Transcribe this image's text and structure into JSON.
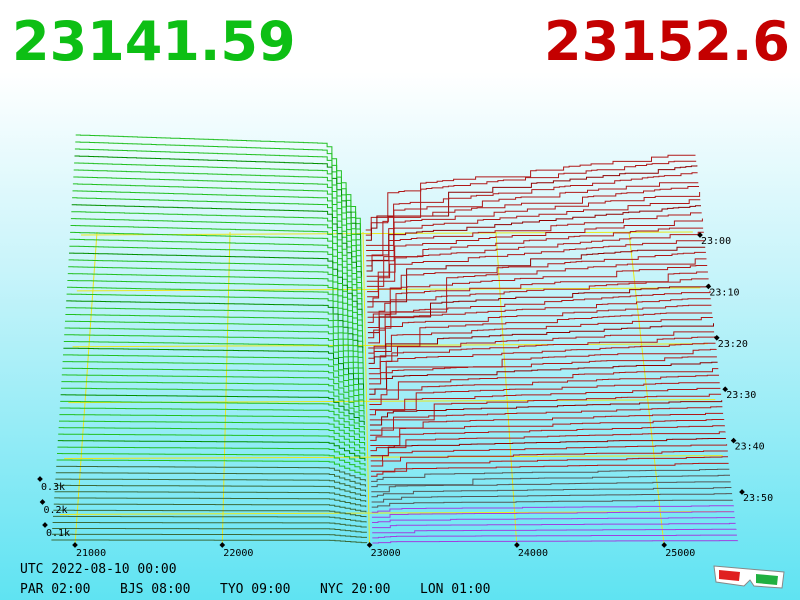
{
  "header": {
    "bid_price": "23141.59",
    "ask_price": "23152.6"
  },
  "price_ticks": [
    "21000",
    "22000",
    "23000",
    "24000",
    "25000"
  ],
  "time_ticks": [
    "23:00",
    "23:10",
    "23:20",
    "23:30",
    "23:40",
    "23:50"
  ],
  "volume_ticks": [
    "0.3k",
    "0.2k",
    "0.1k"
  ],
  "footer": {
    "utc": "UTC 2022-08-10 00:00",
    "zones": [
      "PAR 02:00",
      "BJS 08:00",
      "TYO 09:00",
      "NYC 20:00",
      "LON 01:00"
    ]
  }
}
